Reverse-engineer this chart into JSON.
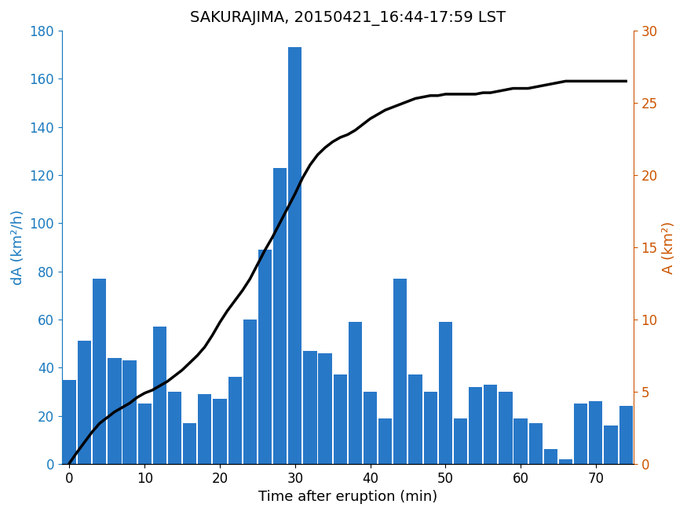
{
  "title": "SAKURAJIMA, 20150421_16:44-17:59 LST",
  "xlabel": "Time after eruption (min)",
  "ylabel_left": "dA (km²/h)",
  "ylabel_right": "A (km²)",
  "bar_color": "#2878c8",
  "line_color": "#000000",
  "left_axis_color": "#1a7abf",
  "right_axis_color": "#cc5500",
  "bar_centers": [
    0,
    2,
    4,
    6,
    8,
    10,
    12,
    14,
    16,
    18,
    20,
    22,
    24,
    26,
    28,
    30,
    32,
    34,
    36,
    38,
    40,
    42,
    44,
    46,
    48,
    50,
    52,
    54,
    56,
    58,
    60,
    62,
    64,
    66,
    68,
    70,
    72,
    74
  ],
  "bar_values": [
    35,
    51,
    77,
    44,
    43,
    25,
    57,
    30,
    17,
    29,
    27,
    36,
    60,
    89,
    123,
    173,
    47,
    46,
    37,
    59,
    30,
    19,
    77,
    37,
    30,
    59,
    19,
    32,
    33,
    30,
    19,
    17,
    6,
    2,
    25,
    26,
    16,
    24
  ],
  "line_x": [
    0,
    1,
    2,
    3,
    4,
    5,
    6,
    7,
    8,
    9,
    10,
    11,
    12,
    13,
    14,
    15,
    16,
    17,
    18,
    19,
    20,
    21,
    22,
    23,
    24,
    25,
    26,
    27,
    28,
    29,
    30,
    31,
    32,
    33,
    34,
    35,
    36,
    37,
    38,
    39,
    40,
    41,
    42,
    43,
    44,
    45,
    46,
    47,
    48,
    49,
    50,
    51,
    52,
    53,
    54,
    55,
    56,
    57,
    58,
    59,
    60,
    61,
    62,
    63,
    64,
    65,
    66,
    67,
    68,
    69,
    70,
    71,
    72,
    73,
    74
  ],
  "line_y": [
    0.05,
    0.8,
    1.5,
    2.2,
    2.8,
    3.2,
    3.6,
    3.9,
    4.2,
    4.6,
    4.9,
    5.1,
    5.4,
    5.7,
    6.1,
    6.5,
    7.0,
    7.5,
    8.1,
    8.9,
    9.8,
    10.6,
    11.3,
    12.0,
    12.8,
    13.8,
    14.8,
    15.7,
    16.7,
    17.7,
    18.7,
    19.8,
    20.7,
    21.4,
    21.9,
    22.3,
    22.6,
    22.8,
    23.1,
    23.5,
    23.9,
    24.2,
    24.5,
    24.7,
    24.9,
    25.1,
    25.3,
    25.4,
    25.5,
    25.5,
    25.6,
    25.6,
    25.6,
    25.6,
    25.6,
    25.7,
    25.7,
    25.8,
    25.9,
    26.0,
    26.0,
    26.0,
    26.1,
    26.2,
    26.3,
    26.4,
    26.5,
    26.5,
    26.5,
    26.5,
    26.5,
    26.5,
    26.5,
    26.5,
    26.5
  ],
  "ylim_left": [
    0,
    180
  ],
  "ylim_right": [
    0,
    30
  ],
  "xlim": [
    -1,
    75
  ],
  "xticks": [
    0,
    10,
    20,
    30,
    40,
    50,
    60,
    70
  ],
  "yticks_left": [
    0,
    20,
    40,
    60,
    80,
    100,
    120,
    140,
    160,
    180
  ],
  "yticks_right": [
    0,
    5,
    10,
    15,
    20,
    25,
    30
  ],
  "title_fontsize": 14,
  "label_fontsize": 13,
  "tick_fontsize": 12,
  "bar_width": 1.8
}
